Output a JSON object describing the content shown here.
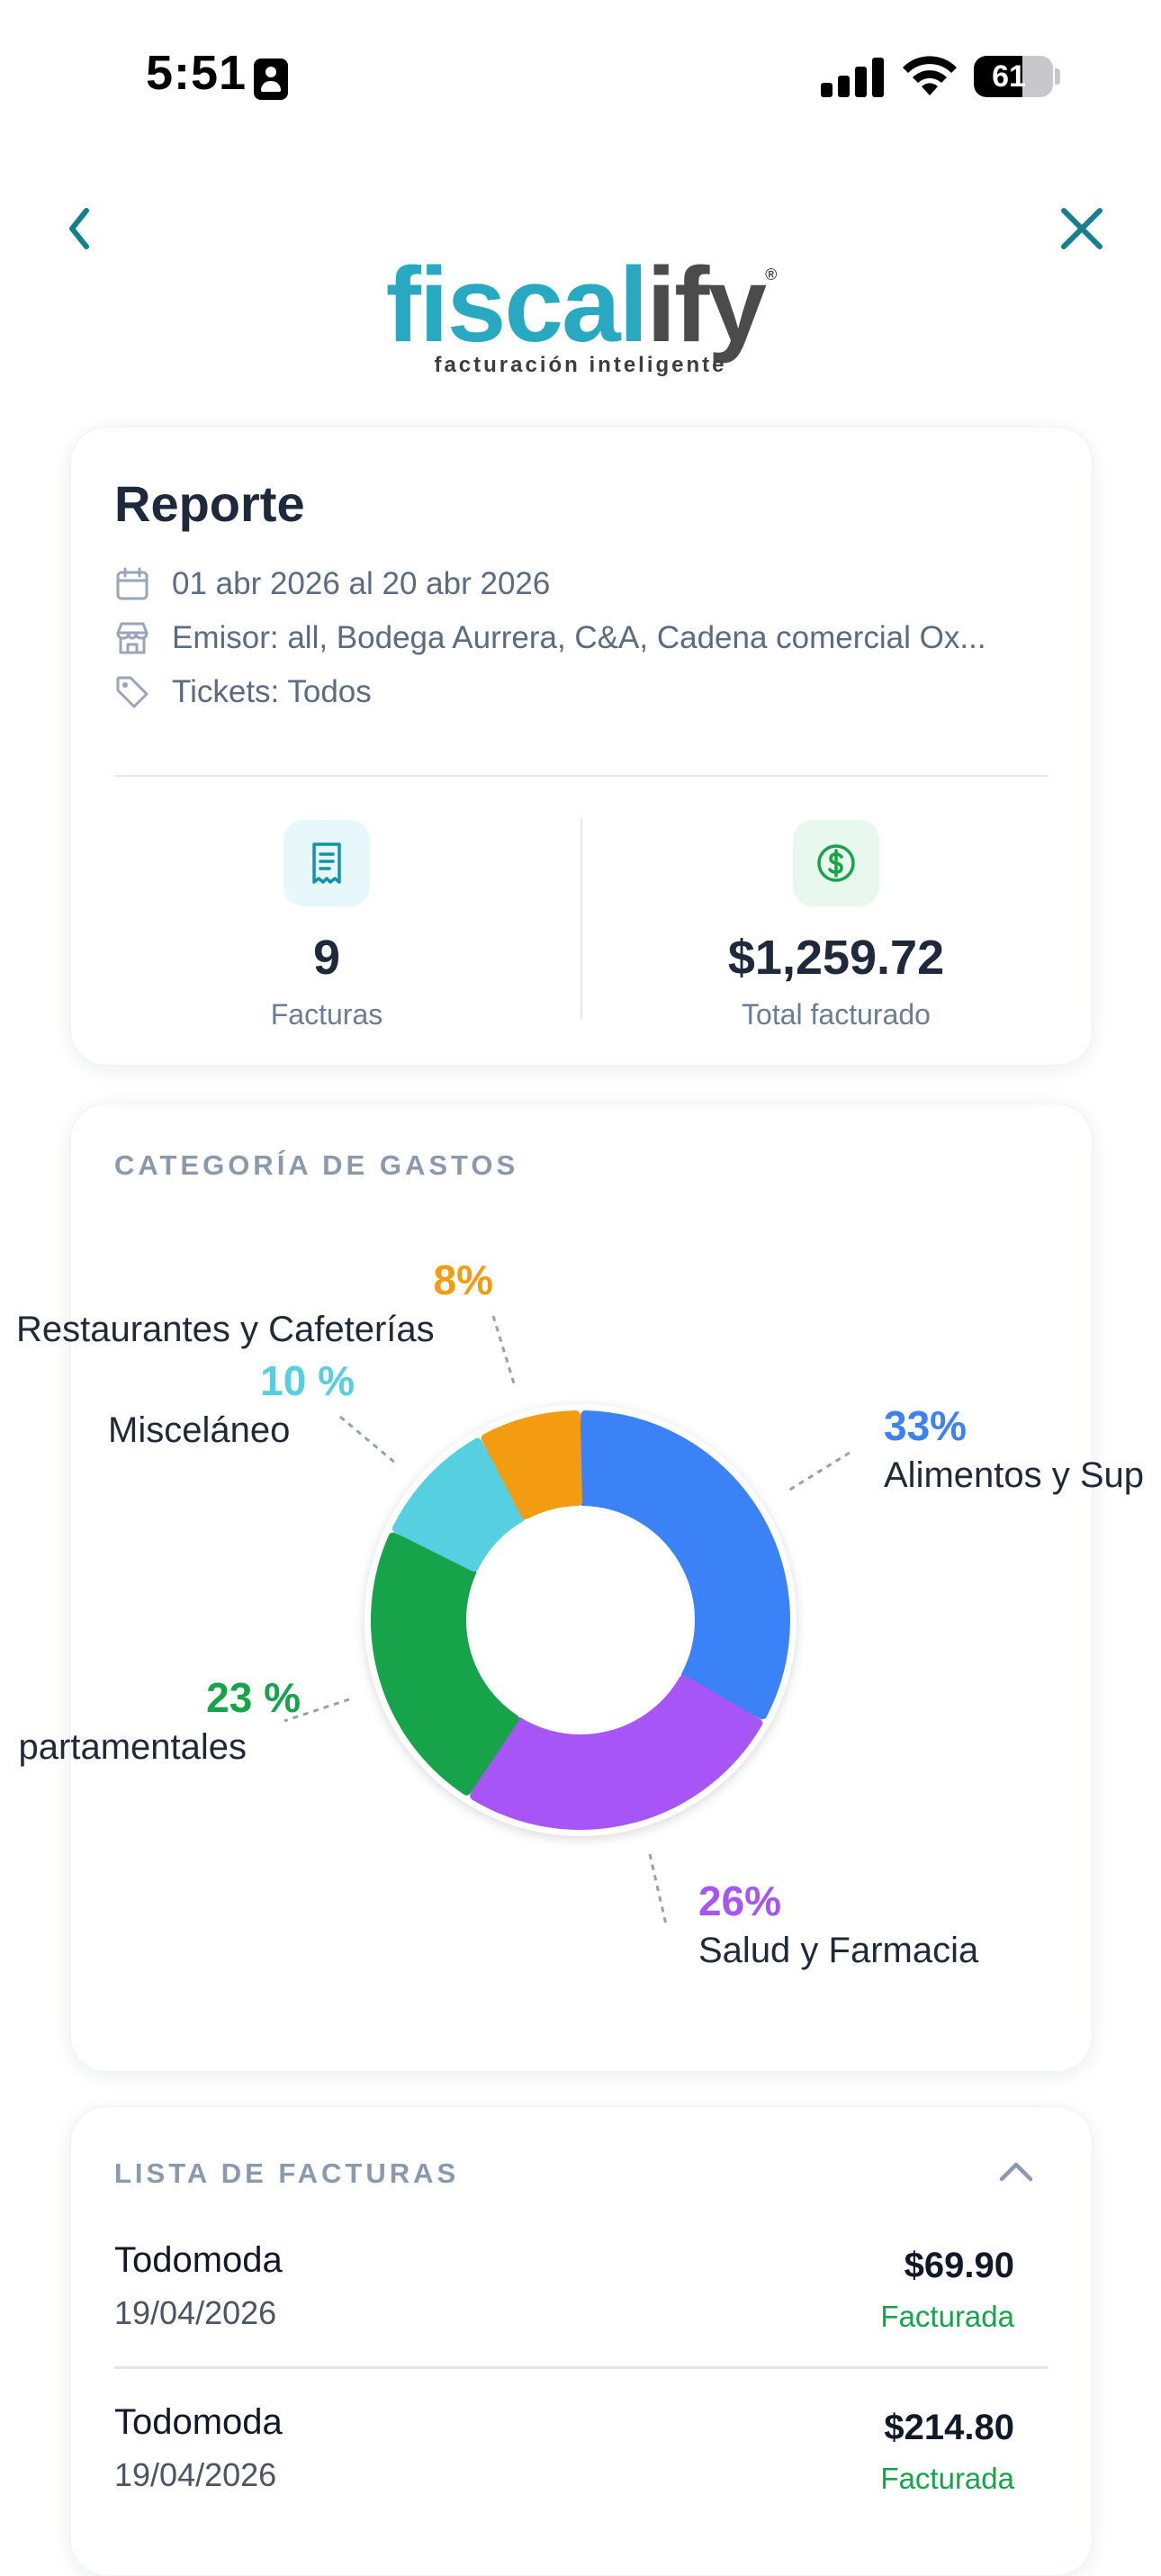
{
  "status_bar": {
    "time": "5:51",
    "battery": "61",
    "battery_level": 0.61
  },
  "logo": {
    "part1": "fiscal",
    "part2": "ify",
    "registered": "®",
    "tagline": "facturación inteligente"
  },
  "report": {
    "title": "Reporte",
    "date_range": "01 abr 2026 al 20 abr 2026",
    "emisor": "Emisor: all, Bodega Aurrera, C&A, Cadena comercial Ox...",
    "tickets": "Tickets: Todos",
    "stats": [
      {
        "value": "9",
        "label": "Facturas"
      },
      {
        "value": "$1,259.72",
        "label": "Total facturado"
      }
    ]
  },
  "categories": {
    "title": "CATEGORÍA DE GASTOS"
  },
  "chart_data": {
    "type": "pie",
    "title": "CATEGORÍA DE GASTOS",
    "slices": [
      {
        "label": "Alimentos y Sup",
        "percent_label": "33%",
        "value": 33,
        "color": "#3b82f6"
      },
      {
        "label": "Salud y Farmacia",
        "percent_label": "26%",
        "value": 26,
        "color": "#a855f7"
      },
      {
        "label": "partamentales",
        "percent_label": "23 %",
        "value": 23,
        "color": "#16a34a"
      },
      {
        "label": "Misceláneo",
        "percent_label": "10 %",
        "value": 10,
        "color": "#56cfe1"
      },
      {
        "label": "Restaurantes y Cafeterías",
        "percent_label": "8%",
        "value": 8,
        "color": "#f39c12"
      }
    ]
  },
  "invoices": {
    "title": "LISTA DE FACTURAS",
    "items": [
      {
        "name": "Todomoda",
        "date": "19/04/2026",
        "amount": "$69.90",
        "status": "Facturada"
      },
      {
        "name": "Todomoda",
        "date": "19/04/2026",
        "amount": "$214.80",
        "status": "Facturada"
      }
    ]
  }
}
